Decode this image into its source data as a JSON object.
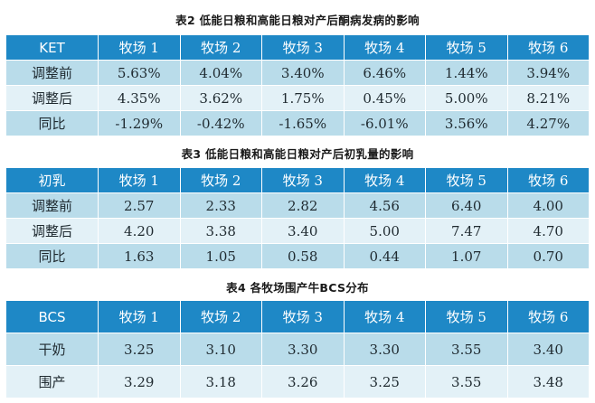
{
  "table2": {
    "caption": "表2  低能日粮和高能日粮对产后酮病发病的影响",
    "headers": [
      "KET",
      "牧场 1",
      "牧场 2",
      "牧场 3",
      "牧场 4",
      "牧场 5",
      "牧场 6"
    ],
    "rows": [
      [
        "调整前",
        "5.63%",
        "4.04%",
        "3.40%",
        "6.46%",
        "1.44%",
        "3.94%"
      ],
      [
        "调整后",
        "4.35%",
        "3.62%",
        "1.75%",
        "0.45%",
        "5.00%",
        "8.21%"
      ],
      [
        "同比",
        "-1.29%",
        "-0.42%",
        "-1.65%",
        "-6.01%",
        "3.56%",
        "4.27%"
      ]
    ]
  },
  "table3": {
    "caption": "表3  低能日粮和高能日粮对产后初乳量的影响",
    "headers": [
      "初乳",
      "牧场 1",
      "牧场 2",
      "牧场 3",
      "牧场 4",
      "牧场 5",
      "牧场 6"
    ],
    "rows": [
      [
        "调整前",
        "2.57",
        "2.33",
        "2.82",
        "4.56",
        "6.40",
        "4.00"
      ],
      [
        "调整后",
        "4.20",
        "3.38",
        "3.40",
        "5.00",
        "7.47",
        "4.70"
      ],
      [
        "同比",
        "1.63",
        "1.05",
        "0.58",
        "0.44",
        "1.07",
        "0.70"
      ]
    ]
  },
  "table4": {
    "caption": "表4  各牧场围产牛BCS分布",
    "headers": [
      "BCS",
      "牧场 1",
      "牧场 2",
      "牧场 3",
      "牧场 4",
      "牧场 5",
      "牧场 6"
    ],
    "rows": [
      [
        "干奶",
        "3.25",
        "3.10",
        "3.30",
        "3.30",
        "3.55",
        "3.40"
      ],
      [
        "围产",
        "3.29",
        "3.18",
        "3.26",
        "3.25",
        "3.55",
        "3.48"
      ]
    ]
  },
  "colors": {
    "header": "#1e88c6",
    "row_dark": "#b9dcea",
    "row_light": "#e3f1f7"
  }
}
